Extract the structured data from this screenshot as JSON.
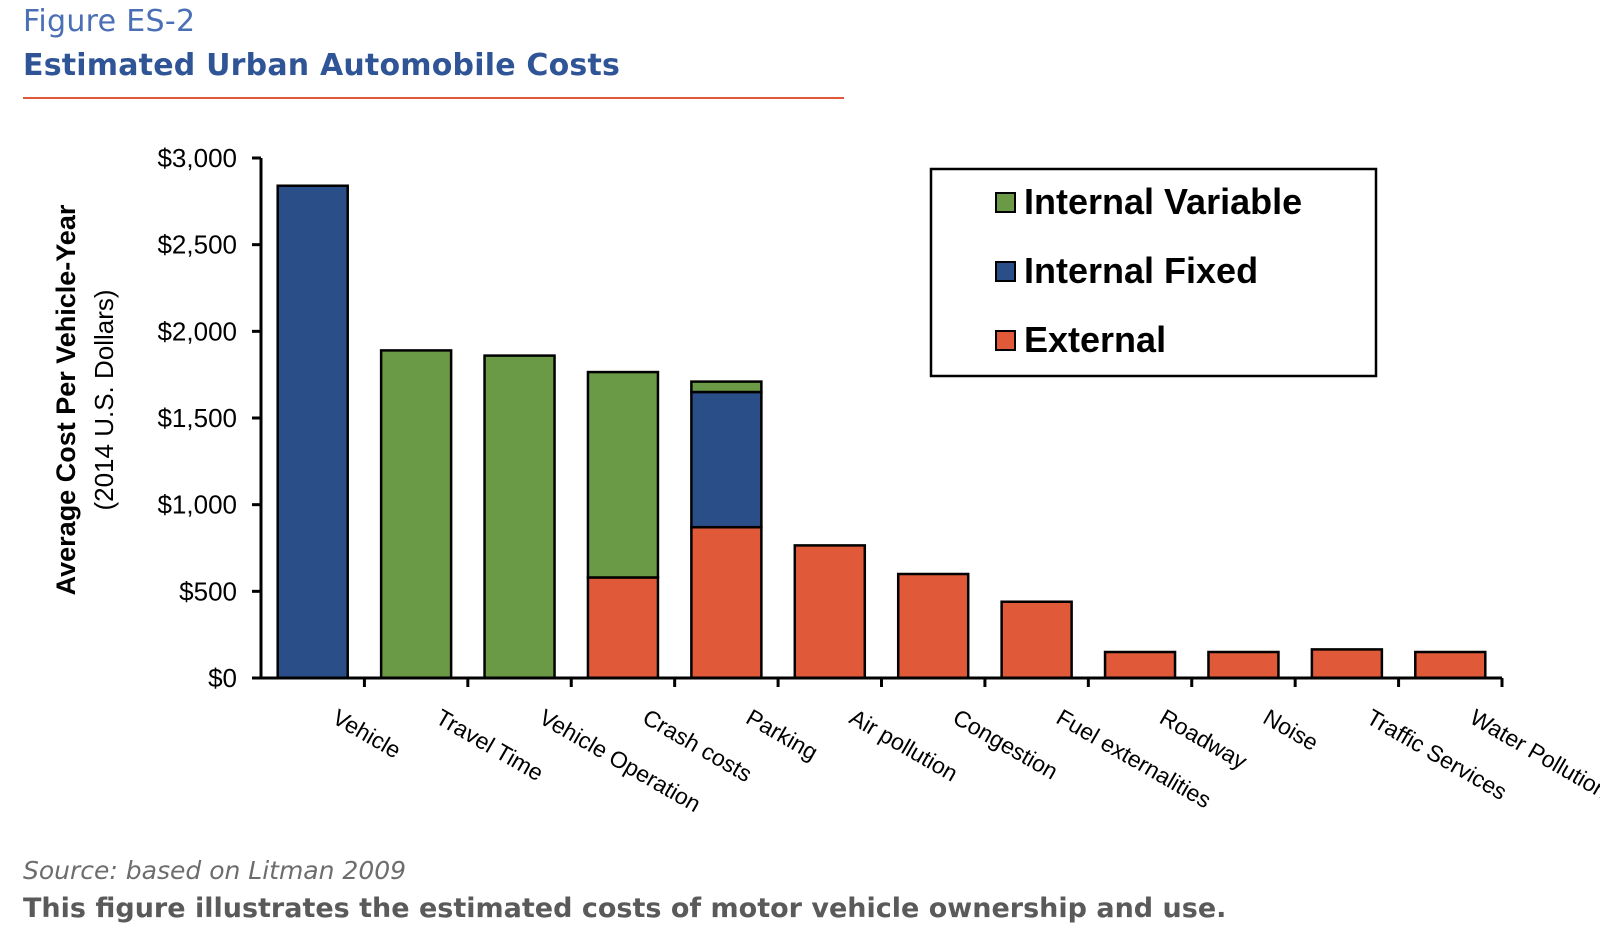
{
  "figure": {
    "label": "Figure ES-2",
    "title": "Estimated Urban Automobile Costs",
    "source": "Source: based on Litman 2009",
    "caption": "This figure illustrates the estimated costs of motor vehicle ownership and use."
  },
  "colors": {
    "internal_variable": "#6a9a45",
    "internal_fixed": "#2a4e87",
    "external": "#e05a3a",
    "rule": "#e05a3a",
    "title": "#2f5597"
  },
  "chart_data": {
    "type": "bar",
    "stacked": true,
    "title": "",
    "xlabel": "",
    "ylabel": "Average Cost Per Vehicle-Year",
    "ylabel_sub": "(2014 U.S. Dollars)",
    "ylim": [
      0,
      3000
    ],
    "yticks": [
      0,
      500,
      1000,
      1500,
      2000,
      2500,
      3000
    ],
    "ytick_labels": [
      "$0",
      "$500",
      "$1,000",
      "$1,500",
      "$2,000",
      "$2,500",
      "$3,000"
    ],
    "categories": [
      "Vehicle",
      "Travel Time",
      "Vehicle Operation",
      "Crash costs",
      "Parking",
      "Air pollution",
      "Congestion",
      "Fuel externalities",
      "Roadway",
      "Noise",
      "Traffic Services",
      "Water Pollution"
    ],
    "series": [
      {
        "name": "External",
        "color": "#e05a3a",
        "values": [
          0,
          0,
          0,
          580,
          870,
          765,
          600,
          440,
          150,
          150,
          165,
          150
        ]
      },
      {
        "name": "Internal Fixed",
        "color": "#2a4e87",
        "values": [
          2840,
          0,
          0,
          0,
          780,
          0,
          0,
          0,
          0,
          0,
          0,
          0
        ]
      },
      {
        "name": "Internal Variable",
        "color": "#6a9a45",
        "values": [
          0,
          1890,
          1860,
          1185,
          60,
          0,
          0,
          0,
          0,
          0,
          0,
          0
        ]
      }
    ],
    "legend_order": [
      "Internal Variable",
      "Internal Fixed",
      "External"
    ],
    "legend_position": "top-right",
    "grid": false
  }
}
